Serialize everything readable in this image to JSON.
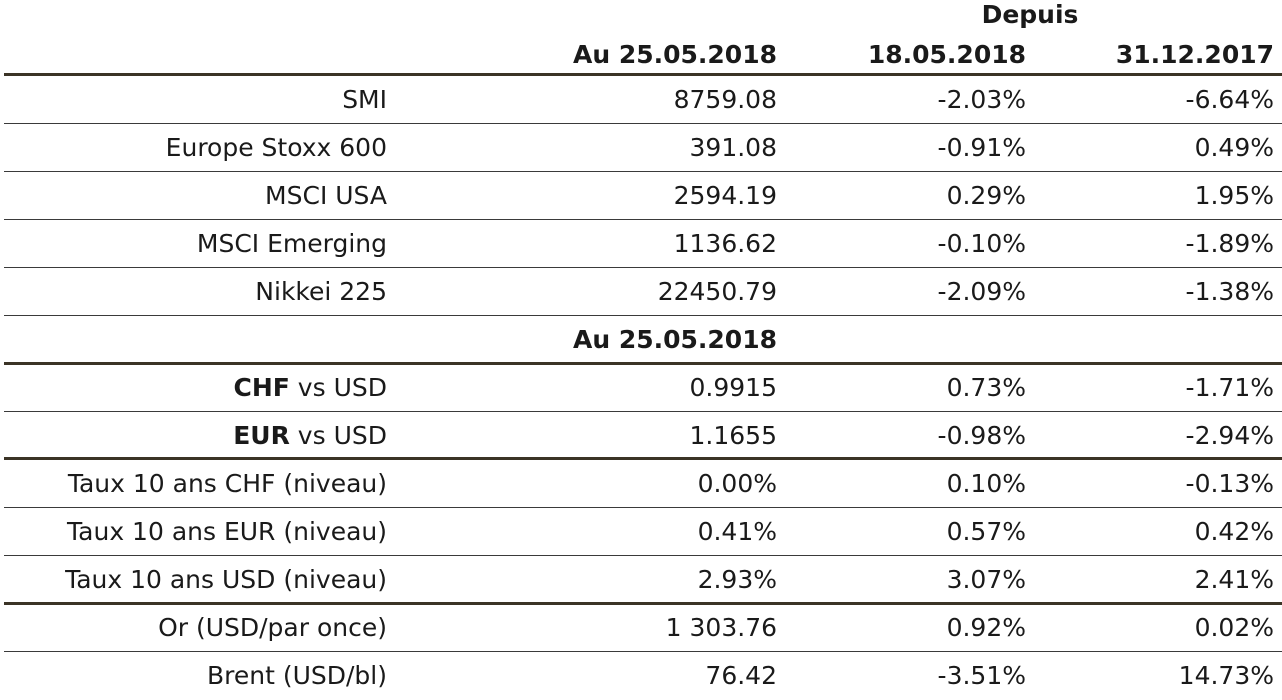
{
  "header": {
    "depuis": "Depuis",
    "col1": "Au 25.05.2018",
    "col2": "18.05.2018",
    "col3": "31.12.2017"
  },
  "indices": [
    {
      "name": "SMI",
      "value": "8759.08",
      "since_week": "-2.03%",
      "since_year": "-6.64%"
    },
    {
      "name": "Europe Stoxx 600",
      "value": "391.08",
      "since_week": "-0.91%",
      "since_year": "0.49%"
    },
    {
      "name": "MSCI USA",
      "value": "2594.19",
      "since_week": "0.29%",
      "since_year": "1.95%"
    },
    {
      "name": "MSCI Emerging",
      "value": "1136.62",
      "since_week": "-0.10%",
      "since_year": "-1.89%"
    },
    {
      "name": "Nikkei 225",
      "value": "22450.79",
      "since_week": "-2.09%",
      "since_year": "-1.38%"
    }
  ],
  "subheader": "Au 25.05.2018",
  "currencies": [
    {
      "code": "CHF",
      "rest": " vs USD",
      "value": "0.9915",
      "since_week": "0.73%",
      "since_year": "-1.71%"
    },
    {
      "code": "EUR",
      "rest": " vs USD",
      "value": "1.1655",
      "since_week": "-0.98%",
      "since_year": "-2.94%"
    }
  ],
  "rates": [
    {
      "name": "Taux 10 ans CHF (niveau)",
      "value": "0.00%",
      "since_week": "0.10%",
      "since_year": "-0.13%"
    },
    {
      "name": "Taux 10 ans EUR (niveau)",
      "value": "0.41%",
      "since_week": "0.57%",
      "since_year": "0.42%"
    },
    {
      "name": "Taux 10 ans USD (niveau)",
      "value": "2.93%",
      "since_week": "3.07%",
      "since_year": "2.41%"
    }
  ],
  "commodities": [
    {
      "name": "Or (USD/par once)",
      "value": "1 303.76",
      "since_week": "0.92%",
      "since_year": "0.02%"
    },
    {
      "name": "Brent (USD/bl)",
      "value": "76.42",
      "since_week": "-3.51%",
      "since_year": "14.73%"
    }
  ]
}
